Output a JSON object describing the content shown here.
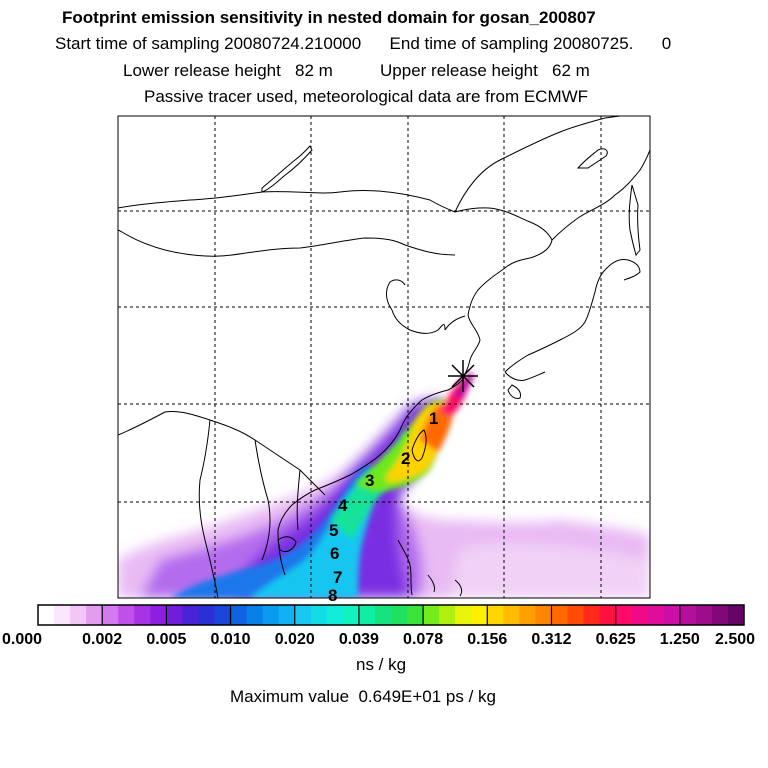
{
  "header": {
    "title": "Footprint emission sensitivity in nested domain for gosan_200807",
    "sampling_line": "Start time of sampling 20080724.210000      End time of sampling 20080725.      0",
    "release_line": "Lower release height   82 m          Upper release height   62 m",
    "tracer_line": "Passive tracer used, meteorological data are from ECMWF"
  },
  "trajectory_labels": [
    "1",
    "2",
    "3",
    "4",
    "5",
    "6",
    "7",
    "8"
  ],
  "colorbar": {
    "ticks": [
      "0.000",
      "0.002",
      "0.005",
      "0.010",
      "0.020",
      "0.039",
      "0.078",
      "0.156",
      "0.312",
      "0.625",
      "1.250",
      "2.500"
    ],
    "colors": [
      "#ffffff",
      "#fbe6fb",
      "#f2c6f6",
      "#e49cf1",
      "#d27aee",
      "#c050ea",
      "#a833e6",
      "#8f1fe0",
      "#6f1fdc",
      "#4a22d8",
      "#2b30d6",
      "#1c46da",
      "#0f62e0",
      "#0a7fe8",
      "#0a9af0",
      "#10b2f4",
      "#18c8f2",
      "#14dce6",
      "#10ecd8",
      "#10f2c2",
      "#10eea4",
      "#16e280",
      "#20e060",
      "#3ae43a",
      "#74ec1a",
      "#b0f010",
      "#e8f40c",
      "#fff000",
      "#ffd600",
      "#ffbc00",
      "#ffa000",
      "#ff8600",
      "#ff6a00",
      "#ff4a08",
      "#ff2a1a",
      "#ff1040",
      "#ff0a68",
      "#f00a88",
      "#e00c9c",
      "#cc0ea4",
      "#b40e9c",
      "#9c0c8c",
      "#82087a",
      "#660566"
    ],
    "unit": "ns / kg",
    "maximum": "Maximum value  0.649E+01 ps / kg"
  },
  "station_marker": "star-cross"
}
